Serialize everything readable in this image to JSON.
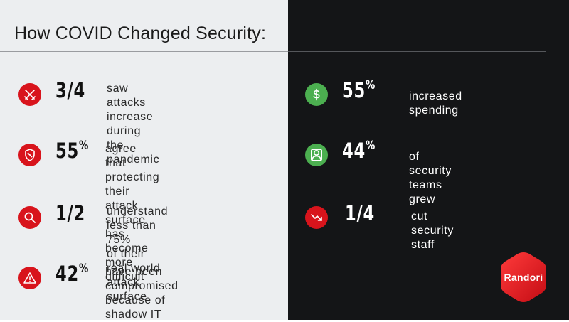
{
  "title": "How COVID Changed Security:",
  "left_stats": [
    {
      "icon": "crossed-swords-icon",
      "value": "3/4",
      "pct": "",
      "desc": "saw attacks increase\nduring the pandemic"
    },
    {
      "icon": "shield-icon",
      "value": "55",
      "pct": "%",
      "desc": "agree that protecting their\nattack surface has become\nmore difficult"
    },
    {
      "icon": "magnifier-icon",
      "value": "1/2",
      "pct": "",
      "desc": "understand less than 75%\nof their real world attack\nsurface"
    },
    {
      "icon": "warning-triangle-icon",
      "value": "42",
      "pct": "%",
      "desc": "have been compromised\nbecause of shadow IT"
    }
  ],
  "right_stats": [
    {
      "icon": "dollar-icon",
      "value": "55",
      "pct": "%",
      "desc": "increased spending",
      "color": "#4caf50"
    },
    {
      "icon": "person-icon",
      "value": "44",
      "pct": "%",
      "desc": "of security teams grew",
      "color": "#4caf50"
    },
    {
      "icon": "trend-down-icon",
      "value": "1/4",
      "pct": "",
      "desc": "cut security staff",
      "color": "#d8141c"
    }
  ],
  "logo": {
    "text": "Randori",
    "color": "#e4141b"
  },
  "colors": {
    "accent_red": "#d8141c",
    "accent_green": "#4caf50",
    "dark_bg": "#141517",
    "light_bg": "#eceef0"
  }
}
